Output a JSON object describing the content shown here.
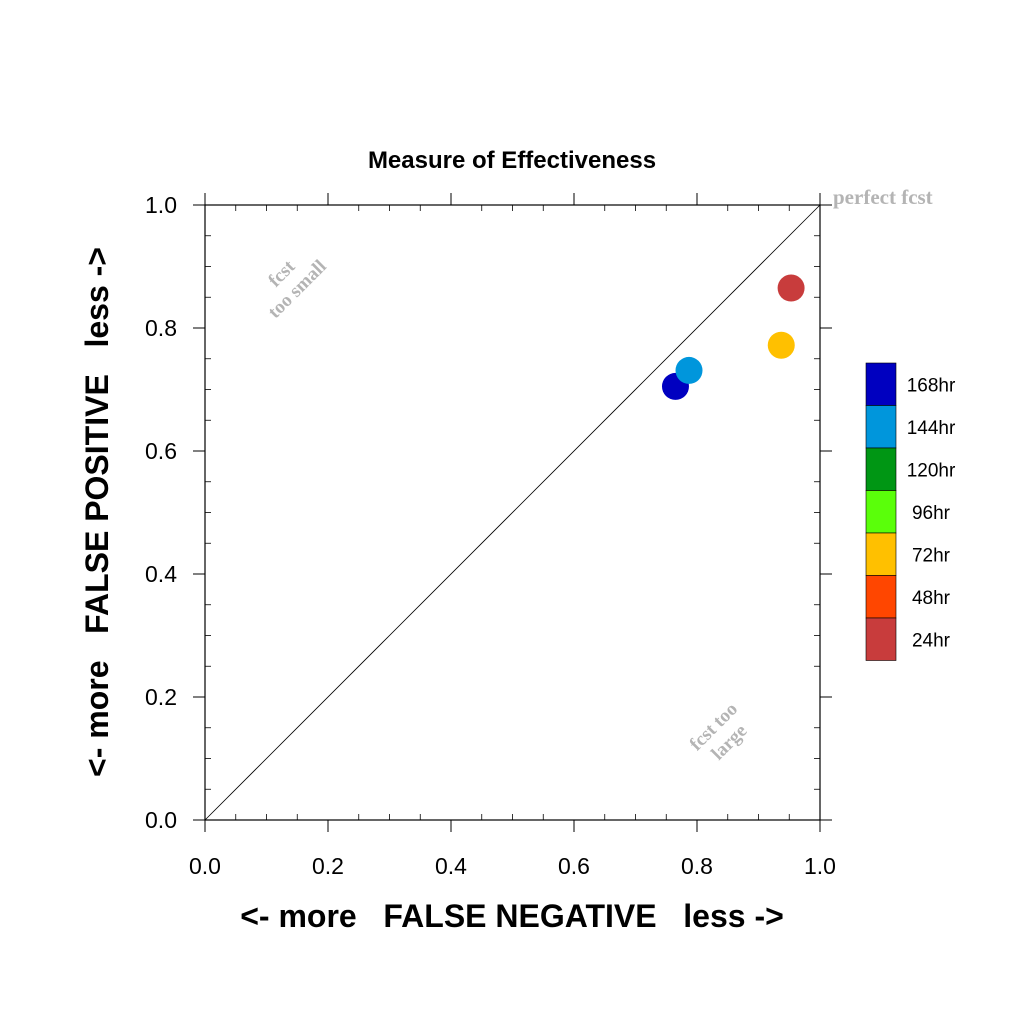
{
  "chart_data": {
    "type": "scatter",
    "title": "Measure of Effectiveness",
    "xlabel": "<- more   FALSE NEGATIVE   less ->",
    "ylabel": "<- more   FALSE POSITIVE   less ->",
    "xlim": [
      0.0,
      1.0
    ],
    "ylim": [
      0.0,
      1.0
    ],
    "x_ticks": [
      "0.0",
      "0.2",
      "0.4",
      "0.6",
      "0.8",
      "1.0"
    ],
    "y_ticks": [
      "0.0",
      "0.2",
      "0.4",
      "0.6",
      "0.8",
      "1.0"
    ],
    "grid": false,
    "reference_line": "diagonal",
    "annotations": {
      "perfect": "perfect fcst",
      "small_line1": "fcst",
      "small_line2": "too small",
      "large_line1": "fcst too",
      "large_line2": "large"
    },
    "legend_position": "right",
    "legend": [
      {
        "label": "168hr",
        "color": "#0000c0"
      },
      {
        "label": "144hr",
        "color": "#0096dc"
      },
      {
        "label": "120hr",
        "color": "#009614"
      },
      {
        "label": "96hr",
        "color": "#5aff0a"
      },
      {
        "label": "72hr",
        "color": "#ffc000"
      },
      {
        "label": "48hr",
        "color": "#ff4600"
      },
      {
        "label": "24hr",
        "color": "#c83c3c"
      }
    ],
    "points": [
      {
        "label": "168hr",
        "x": 0.765,
        "y": 0.705
      },
      {
        "label": "144hr",
        "x": 0.787,
        "y": 0.731
      },
      {
        "label": "72hr",
        "x": 0.937,
        "y": 0.772
      },
      {
        "label": "24hr",
        "x": 0.953,
        "y": 0.865
      }
    ]
  }
}
